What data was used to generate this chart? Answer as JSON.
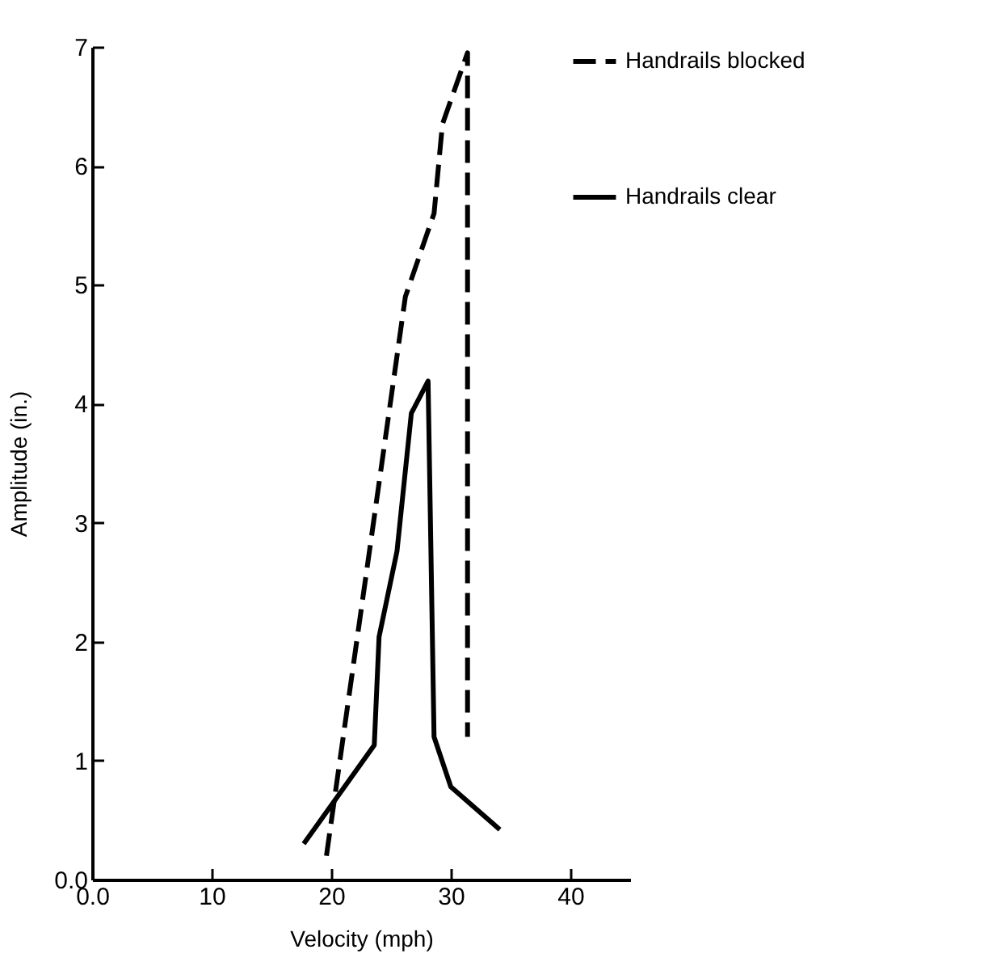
{
  "chart_data": {
    "type": "line",
    "xlabel": "Velocity (mph)",
    "ylabel": "Amplitude (in.)",
    "xlim": [
      0,
      45
    ],
    "xticks": [
      {
        "value": 0,
        "label": "0.0"
      },
      10,
      20,
      30,
      40
    ],
    "ylim": [
      0,
      7
    ],
    "yticks": [
      {
        "value": 0,
        "label": "0.0"
      },
      1,
      2,
      3,
      4,
      5,
      6,
      7
    ],
    "grid": false,
    "legend": "top right",
    "marker": "none",
    "series": [
      {
        "name": "Handrails blocked",
        "color": "#000000",
        "line_style": "dashed",
        "x": [
          19.6,
          26.2,
          28.6,
          29.3,
          31.4,
          31.4
        ],
        "values": [
          0.2,
          4.9,
          5.6,
          6.35,
          6.95,
          1.2
        ]
      },
      {
        "name": "Handrails clear",
        "color": "#000000",
        "line_style": "solid",
        "x": [
          17.7,
          23.6,
          24.0,
          25.5,
          26.7,
          28.1,
          28.6,
          30.0,
          34.1
        ],
        "values": [
          0.3,
          1.13,
          2.04,
          2.76,
          3.92,
          4.19,
          1.2,
          0.78,
          0.42
        ]
      }
    ]
  }
}
